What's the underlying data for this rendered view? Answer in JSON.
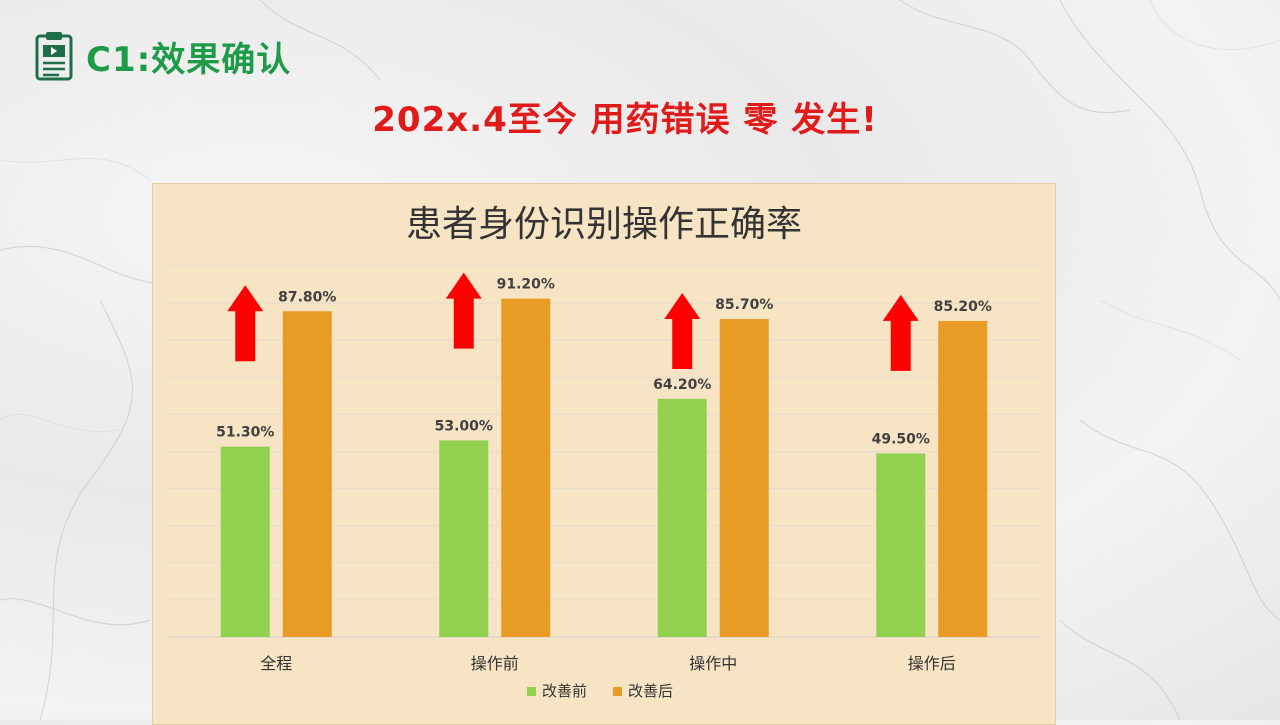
{
  "header": {
    "title": "C1:效果确认",
    "icon": "clipboard-icon"
  },
  "headline": "202x.4至今 用药错误 零 发生!",
  "colors": {
    "before": "#92d050",
    "after": "#e99c25",
    "arrow": "#ff0000",
    "header_green": "#1e9b48",
    "headline_red": "#e11a1a",
    "panel_bg": "#f7e4c5"
  },
  "chart_data": {
    "type": "bar",
    "title": "患者身份识别操作正确率",
    "categories": [
      "全程",
      "操作前",
      "操作中",
      "操作后"
    ],
    "series": [
      {
        "name": "改善前",
        "values": [
          51.3,
          53.0,
          64.2,
          49.5
        ],
        "labels": [
          "51.30%",
          "53.00%",
          "64.20%",
          "49.50%"
        ]
      },
      {
        "name": "改善后",
        "values": [
          87.8,
          91.2,
          85.7,
          85.2
        ],
        "labels": [
          "87.80%",
          "91.20%",
          "85.70%",
          "85.20%"
        ]
      }
    ],
    "ylim": [
      0,
      100
    ],
    "grid": true,
    "legend": "bottom",
    "annotations": "red up arrows above 改善前 bars"
  }
}
